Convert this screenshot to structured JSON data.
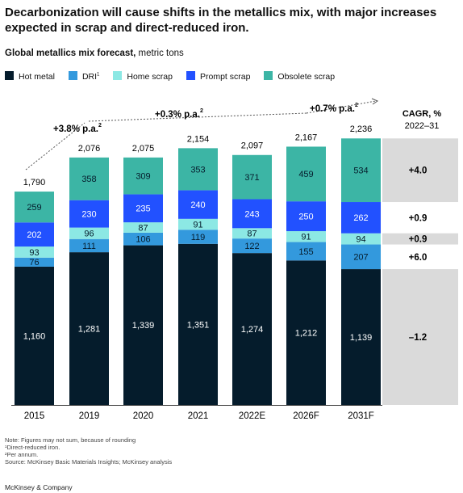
{
  "header": {
    "title": "Decarbonization will cause shifts in the metallics mix, with major increases expected in scrap and direct-reduced iron.",
    "subtitle_bold": "Global metallics mix forecast,",
    "subtitle_rest": " metric tons"
  },
  "legend": [
    {
      "label": "Hot metal",
      "sup": "",
      "color": "#051c2c"
    },
    {
      "label": "DRI",
      "sup": "1",
      "color": "#3399dd"
    },
    {
      "label": "Home scrap",
      "sup": "",
      "color": "#8ce8e4"
    },
    {
      "label": "Prompt scrap",
      "sup": "",
      "color": "#2251ff"
    },
    {
      "label": "Obsolete scrap",
      "sup": "",
      "color": "#3cb5a5"
    }
  ],
  "chart_data": {
    "type": "bar",
    "stacked": true,
    "categories": [
      "2015",
      "2019",
      "2020",
      "2021",
      "2022E",
      "2026F",
      "2031F"
    ],
    "series": [
      {
        "name": "Hot metal",
        "color": "#051c2c",
        "label_color": "#ffffff",
        "values": [
          1160,
          1281,
          1339,
          1351,
          1274,
          1212,
          1139
        ]
      },
      {
        "name": "DRI",
        "color": "#3399dd",
        "label_color": "#051c2c",
        "values": [
          76,
          111,
          106,
          119,
          122,
          155,
          207
        ]
      },
      {
        "name": "Home scrap",
        "color": "#8ce8e4",
        "label_color": "#051c2c",
        "values": [
          93,
          96,
          87,
          91,
          87,
          91,
          94
        ]
      },
      {
        "name": "Prompt scrap",
        "color": "#2251ff",
        "label_color": "#ffffff",
        "values": [
          202,
          230,
          235,
          240,
          243,
          250,
          262
        ]
      },
      {
        "name": "Obsolete scrap",
        "color": "#3cb5a5",
        "label_color": "#051c2c",
        "values": [
          259,
          358,
          309,
          353,
          371,
          459,
          534
        ]
      }
    ],
    "total_labels": [
      "1,790",
      "2,076",
      "2,075",
      "2,154",
      "2,097",
      "2,167",
      "2,236"
    ],
    "growth_annotations": [
      {
        "text": "+3.8% p.a.",
        "sup": "2"
      },
      {
        "text": "+0.3% p.a.",
        "sup": "2"
      },
      {
        "text": "+0.7% p.a.",
        "sup": "2"
      }
    ],
    "cagr": {
      "header_line1": "CAGR, %",
      "header_line2": "2022–31",
      "rows": [
        {
          "series": "Obsolete scrap",
          "value": "+4.0",
          "shaded": true
        },
        {
          "series": "Prompt scrap",
          "value": "+0.9",
          "shaded": false
        },
        {
          "series": "Home scrap",
          "value": "+0.9",
          "shaded": true
        },
        {
          "series": "DRI",
          "value": "+6.0",
          "shaded": false
        },
        {
          "series": "Hot metal",
          "value": "–1.2",
          "shaded": true
        }
      ]
    },
    "ylim": [
      0,
      2236
    ],
    "grid": false,
    "legend_position": "top-left"
  },
  "notes": [
    "Note: Figures may not sum, because of rounding",
    "¹Direct-reduced iron.",
    "²Per annum.",
    "Source: McKinsey Basic Materials Insights; McKinsey analysis"
  ],
  "footer": {
    "brand": "McKinsey & Company"
  },
  "style": {
    "highlight_fill": "#dadada",
    "axis_color": "#333333"
  }
}
